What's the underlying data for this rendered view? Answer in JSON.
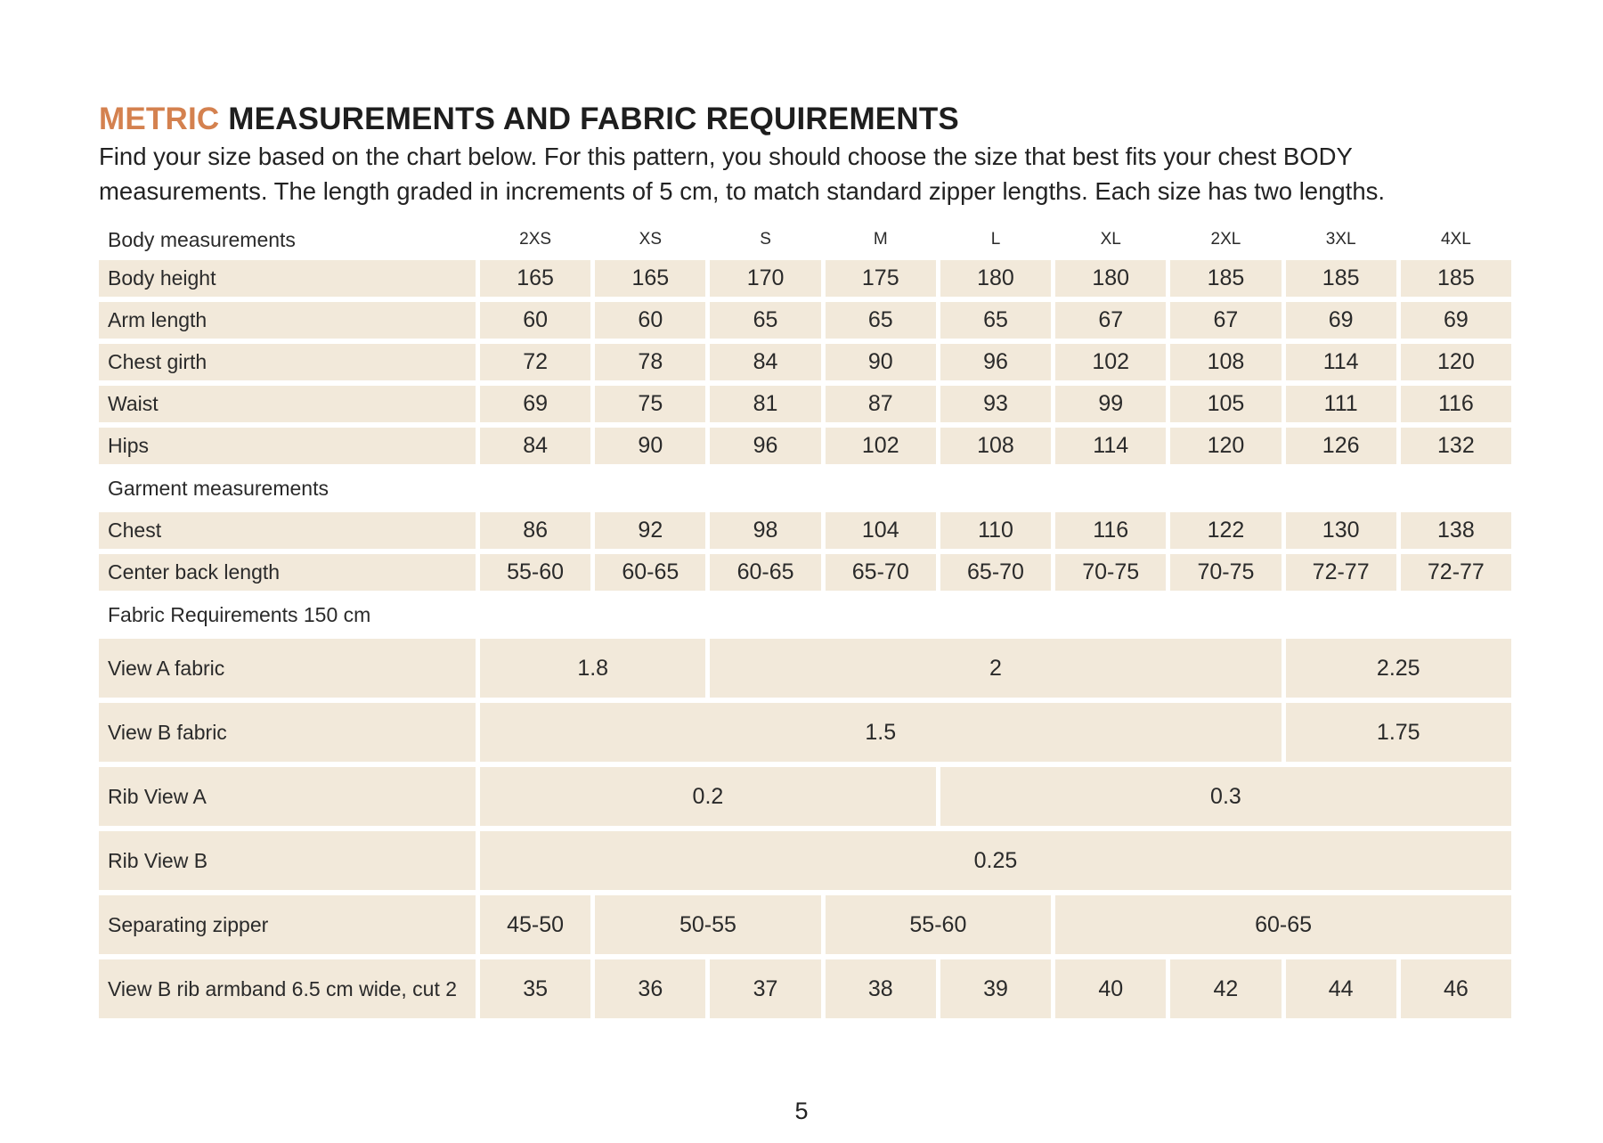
{
  "heading": {
    "accent": "METRIC",
    "rest": " MEASUREMENTS AND FABRIC REQUIREMENTS"
  },
  "intro": "Find your size based on the chart below. For this pattern, you should choose the size that best fits your chest BODY measurements. The length graded in increments of 5 cm, to match standard zipper lengths. Each size has two lengths.",
  "colors": {
    "accent": "#d4814f",
    "cell_background": "#f2e9da"
  },
  "body_header": "Body measurements",
  "sizes": [
    "2XS",
    "XS",
    "S",
    "M",
    "L",
    "XL",
    "2XL",
    "3XL",
    "4XL"
  ],
  "body_rows": [
    {
      "label": "Body height",
      "values": [
        "165",
        "165",
        "170",
        "175",
        "180",
        "180",
        "185",
        "185",
        "185"
      ]
    },
    {
      "label": "Arm length",
      "values": [
        "60",
        "60",
        "65",
        "65",
        "65",
        "67",
        "67",
        "69",
        "69"
      ]
    },
    {
      "label": "Chest girth",
      "values": [
        "72",
        "78",
        "84",
        "90",
        "96",
        "102",
        "108",
        "114",
        "120"
      ]
    },
    {
      "label": "Waist",
      "values": [
        "69",
        "75",
        "81",
        "87",
        "93",
        "99",
        "105",
        "111",
        "116"
      ]
    },
    {
      "label": "Hips",
      "values": [
        "84",
        "90",
        "96",
        "102",
        "108",
        "114",
        "120",
        "126",
        "132"
      ]
    }
  ],
  "garment_header": "Garment measurements",
  "garment_rows": [
    {
      "label": "Chest",
      "values": [
        "86",
        "92",
        "98",
        "104",
        "110",
        "116",
        "122",
        "130",
        "138"
      ]
    },
    {
      "label": "Center back length",
      "values": [
        "55-60",
        "60-65",
        "60-65",
        "65-70",
        "65-70",
        "70-75",
        "70-75",
        "72-77",
        "72-77"
      ]
    }
  ],
  "fabric_header": "Fabric Requirements 150 cm",
  "fabric_rows": [
    {
      "label": "View A fabric",
      "cells": [
        {
          "v": "1.8",
          "span": 2
        },
        {
          "v": "2",
          "span": 5
        },
        {
          "v": "2.25",
          "span": 2
        }
      ]
    },
    {
      "label": "View B fabric",
      "cells": [
        {
          "v": "1.5",
          "span": 7
        },
        {
          "v": "1.75",
          "span": 2
        }
      ]
    },
    {
      "label": "Rib View A",
      "cells": [
        {
          "v": "0.2",
          "span": 4
        },
        {
          "v": "0.3",
          "span": 5
        }
      ]
    },
    {
      "label": "Rib View B",
      "cells": [
        {
          "v": "0.25",
          "span": 9
        }
      ]
    },
    {
      "label": "Separating zipper",
      "cells": [
        {
          "v": "45-50",
          "span": 1
        },
        {
          "v": "50-55",
          "span": 2
        },
        {
          "v": "55-60",
          "span": 2
        },
        {
          "v": "60-65",
          "span": 4
        }
      ]
    },
    {
      "label": "View B rib armband 6.5 cm  wide, cut 2",
      "cells": [
        {
          "v": "35",
          "span": 1
        },
        {
          "v": "36",
          "span": 1
        },
        {
          "v": "37",
          "span": 1
        },
        {
          "v": "38",
          "span": 1
        },
        {
          "v": "39",
          "span": 1
        },
        {
          "v": "40",
          "span": 1
        },
        {
          "v": "42",
          "span": 1
        },
        {
          "v": "44",
          "span": 1
        },
        {
          "v": "46",
          "span": 1
        }
      ]
    }
  ],
  "page_number": "5"
}
